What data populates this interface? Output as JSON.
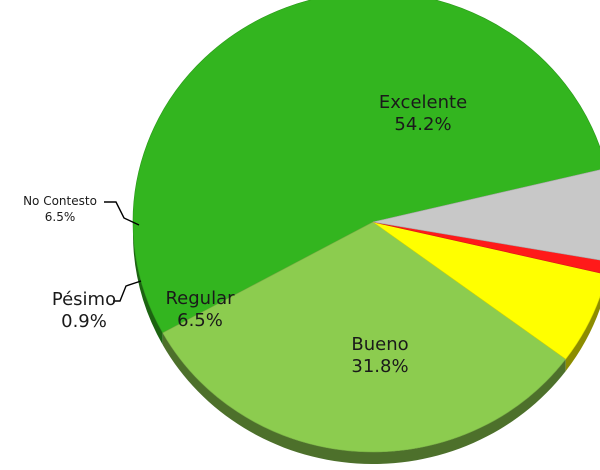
{
  "chart_data": {
    "type": "pie",
    "title": "",
    "slices": [
      {
        "label": "Excelente",
        "value": 54.2,
        "display": "54.2%",
        "color": "#33b51f"
      },
      {
        "label": "Bueno",
        "value": 31.8,
        "display": "31.8%",
        "color": "#8ccc4f"
      },
      {
        "label": "Regular",
        "value": 6.5,
        "display": "6.5%",
        "color": "#ffff00"
      },
      {
        "label": "Pésimo",
        "value": 0.9,
        "display": "0.9%",
        "color": "#ff1a1a"
      },
      {
        "label": "No Contesto",
        "value": 6.5,
        "display": "6.5%",
        "color": "#c8c8c8"
      }
    ],
    "legend": "none",
    "style": "3d"
  }
}
